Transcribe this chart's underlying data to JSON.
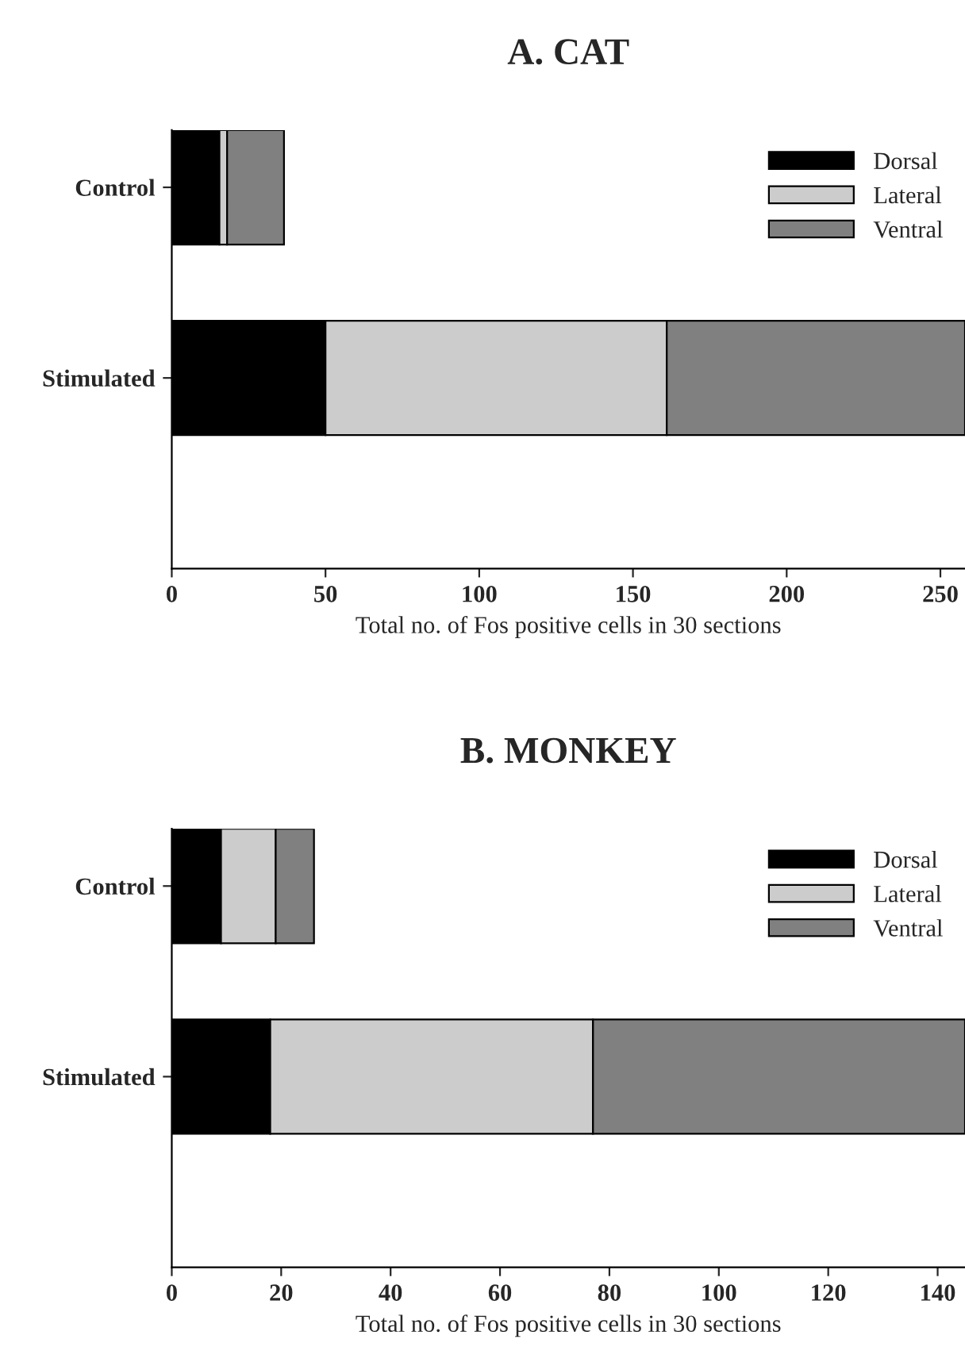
{
  "chart_data": [
    {
      "type": "bar",
      "title": "A. CAT",
      "xlabel": "Total no. of Fos positive cells in 30 sections",
      "categories": [
        "Control",
        "Stimulated"
      ],
      "orientation": "horizontal",
      "stacked": true,
      "legend": "top right",
      "grid": false,
      "xlim": [
        0,
        258
      ],
      "xticks": [
        0,
        50,
        100,
        150,
        200,
        250
      ],
      "series": [
        {
          "name": "Dorsal",
          "color": "#000000",
          "values": [
            15.5,
            50
          ]
        },
        {
          "name": "Lateral",
          "color": "#cccccc",
          "values": [
            2.5,
            111
          ]
        },
        {
          "name": "Ventral",
          "color": "#808080",
          "values": [
            18.5,
            97
          ]
        }
      ]
    },
    {
      "type": "bar",
      "title": "B. MONKEY",
      "xlabel": "Total no. of Fos positive cells in 30 sections",
      "categories": [
        "Control",
        "Stimulated"
      ],
      "orientation": "horizontal",
      "stacked": true,
      "legend": "top right",
      "grid": false,
      "xlim": [
        0,
        145
      ],
      "xticks": [
        0,
        20,
        40,
        60,
        80,
        100,
        120,
        140
      ],
      "series": [
        {
          "name": "Dorsal",
          "color": "#000000",
          "values": [
            9,
            18
          ]
        },
        {
          "name": "Lateral",
          "color": "#cccccc",
          "values": [
            10,
            59
          ]
        },
        {
          "name": "Ventral",
          "color": "#808080",
          "values": [
            7,
            68
          ]
        }
      ]
    }
  ]
}
